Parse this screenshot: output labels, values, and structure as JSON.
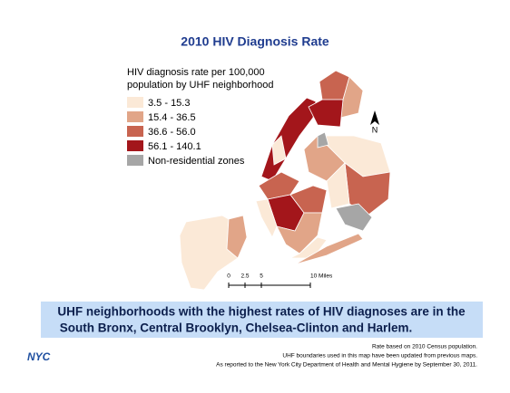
{
  "title": "2010 HIV Diagnosis Rate",
  "legend": {
    "title_lines": [
      "HIV diagnosis rate per 100,000",
      "population by UHF neighborhood"
    ],
    "items": [
      {
        "label": "3.5 - 15.3",
        "color": "#fbe9d7"
      },
      {
        "label": "15.4 - 36.5",
        "color": "#e1a588"
      },
      {
        "label": "36.6 - 56.0",
        "color": "#c86450"
      },
      {
        "label": "56.1 - 140.1",
        "color": "#a3161b"
      },
      {
        "label": "Non-residential zones",
        "color": "#a6a6a6"
      }
    ]
  },
  "map": {
    "north_label": "N",
    "scale_labels": [
      "0",
      "2.5",
      "5",
      "10 Miles"
    ]
  },
  "banner": {
    "lines": [
      "UHF neighborhoods with the highest rates of HIV diagnoses are in the",
      "South Bronx, Central Brooklyn, Chelsea-Clinton and Harlem."
    ]
  },
  "footnotes": [
    "Rate based on 2010 Census population.",
    "UHF boundaries used in this map have been updated from previous maps.",
    "As reported to the New York City Department of Health and Mental Hygiene by September 30, 2011."
  ],
  "logo": "NYC"
}
